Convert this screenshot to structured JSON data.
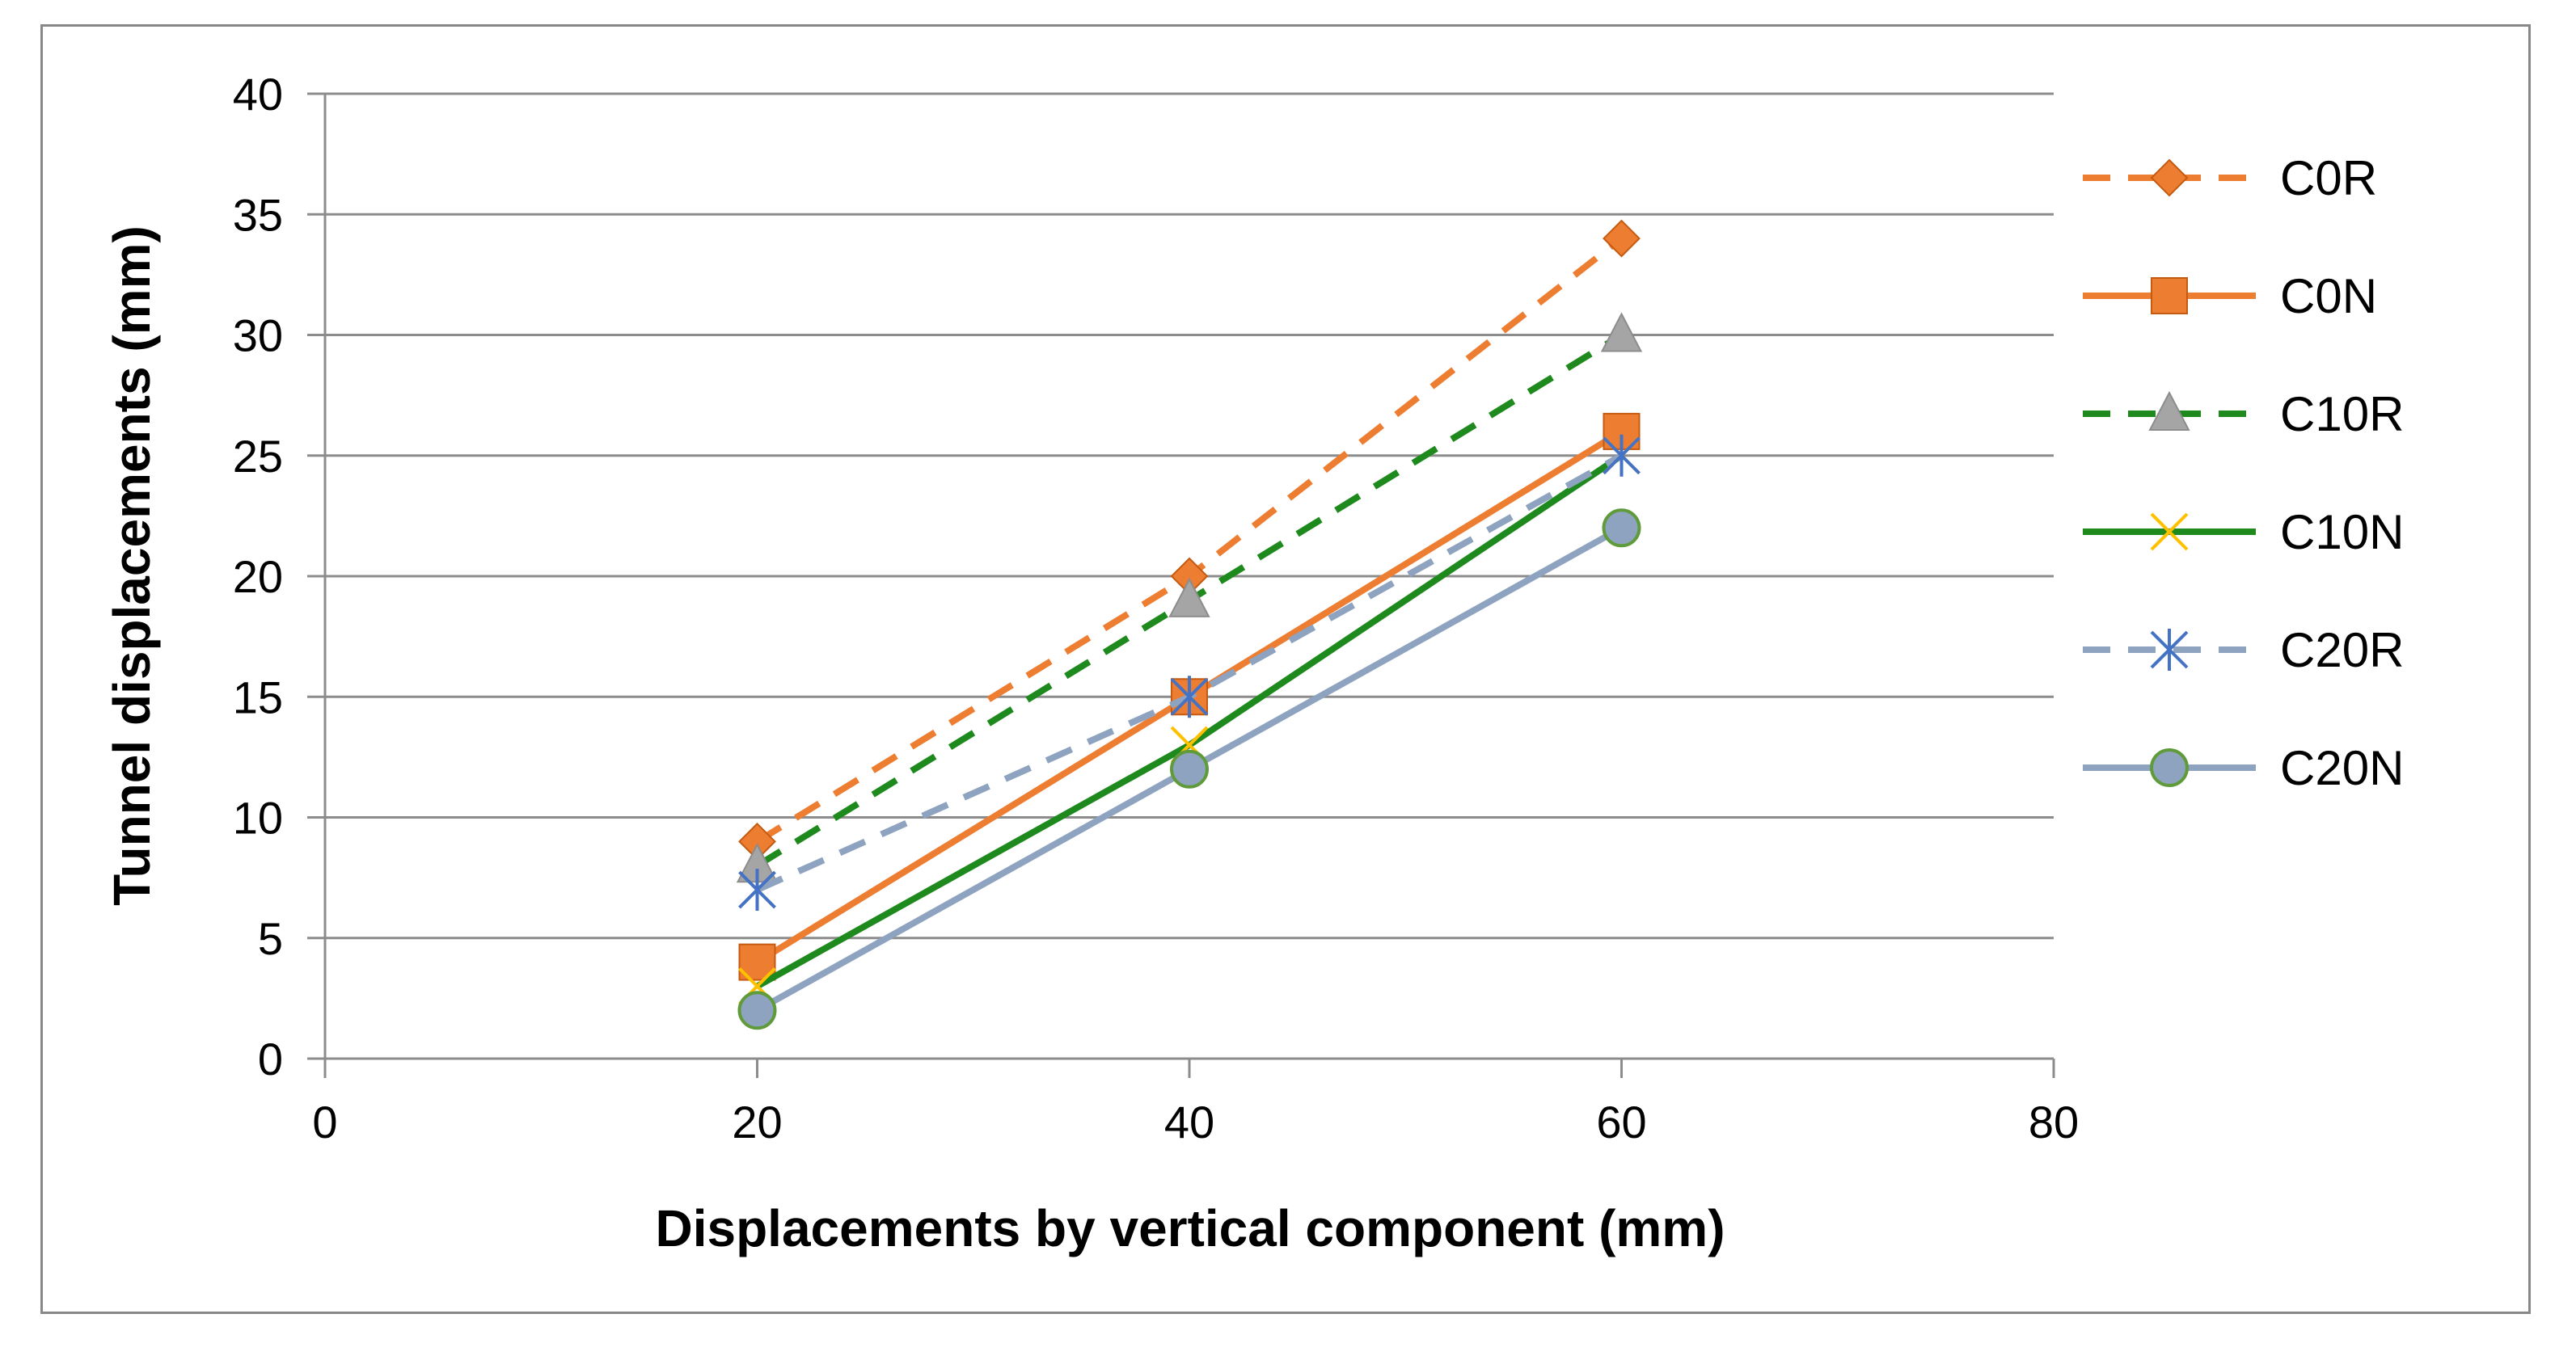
{
  "chart_data": {
    "type": "line",
    "title": "",
    "xlabel": "Displacements by vertical component (mm)",
    "ylabel": "Tunnel displacements (mm)",
    "xlim": [
      0,
      80
    ],
    "ylim": [
      0,
      40
    ],
    "xticks": [
      0,
      20,
      40,
      60,
      80
    ],
    "yticks": [
      0,
      5,
      10,
      15,
      20,
      25,
      30,
      35,
      40
    ],
    "grid": "horizontal",
    "legend_position": "right",
    "x": [
      20,
      40,
      60
    ],
    "series": [
      {
        "name": "C0R",
        "values": [
          9,
          20,
          34
        ],
        "line_color": "#ED7D31",
        "dash": "dashed",
        "marker": "diamond",
        "marker_color": "#ED7D31"
      },
      {
        "name": "C0N",
        "values": [
          4,
          15,
          26
        ],
        "line_color": "#ED7D31",
        "dash": "solid",
        "marker": "square",
        "marker_color": "#ED7D31"
      },
      {
        "name": "C10R",
        "values": [
          8,
          19,
          30
        ],
        "line_color": "#1E8A1E",
        "dash": "dashed",
        "marker": "triangle",
        "marker_color": "#A5A5A5"
      },
      {
        "name": "C10N",
        "values": [
          3,
          13,
          25
        ],
        "line_color": "#1E8A1E",
        "dash": "solid",
        "marker": "x",
        "marker_color": "#FFC000"
      },
      {
        "name": "C20R",
        "values": [
          7,
          15,
          25
        ],
        "line_color": "#8EA3BF",
        "dash": "dashed",
        "marker": "asterisk",
        "marker_color": "#4472C4"
      },
      {
        "name": "C20N",
        "values": [
          2,
          12,
          22
        ],
        "line_color": "#8EA3BF",
        "dash": "solid",
        "marker": "circle",
        "marker_color": "#8EA3BF"
      }
    ]
  }
}
